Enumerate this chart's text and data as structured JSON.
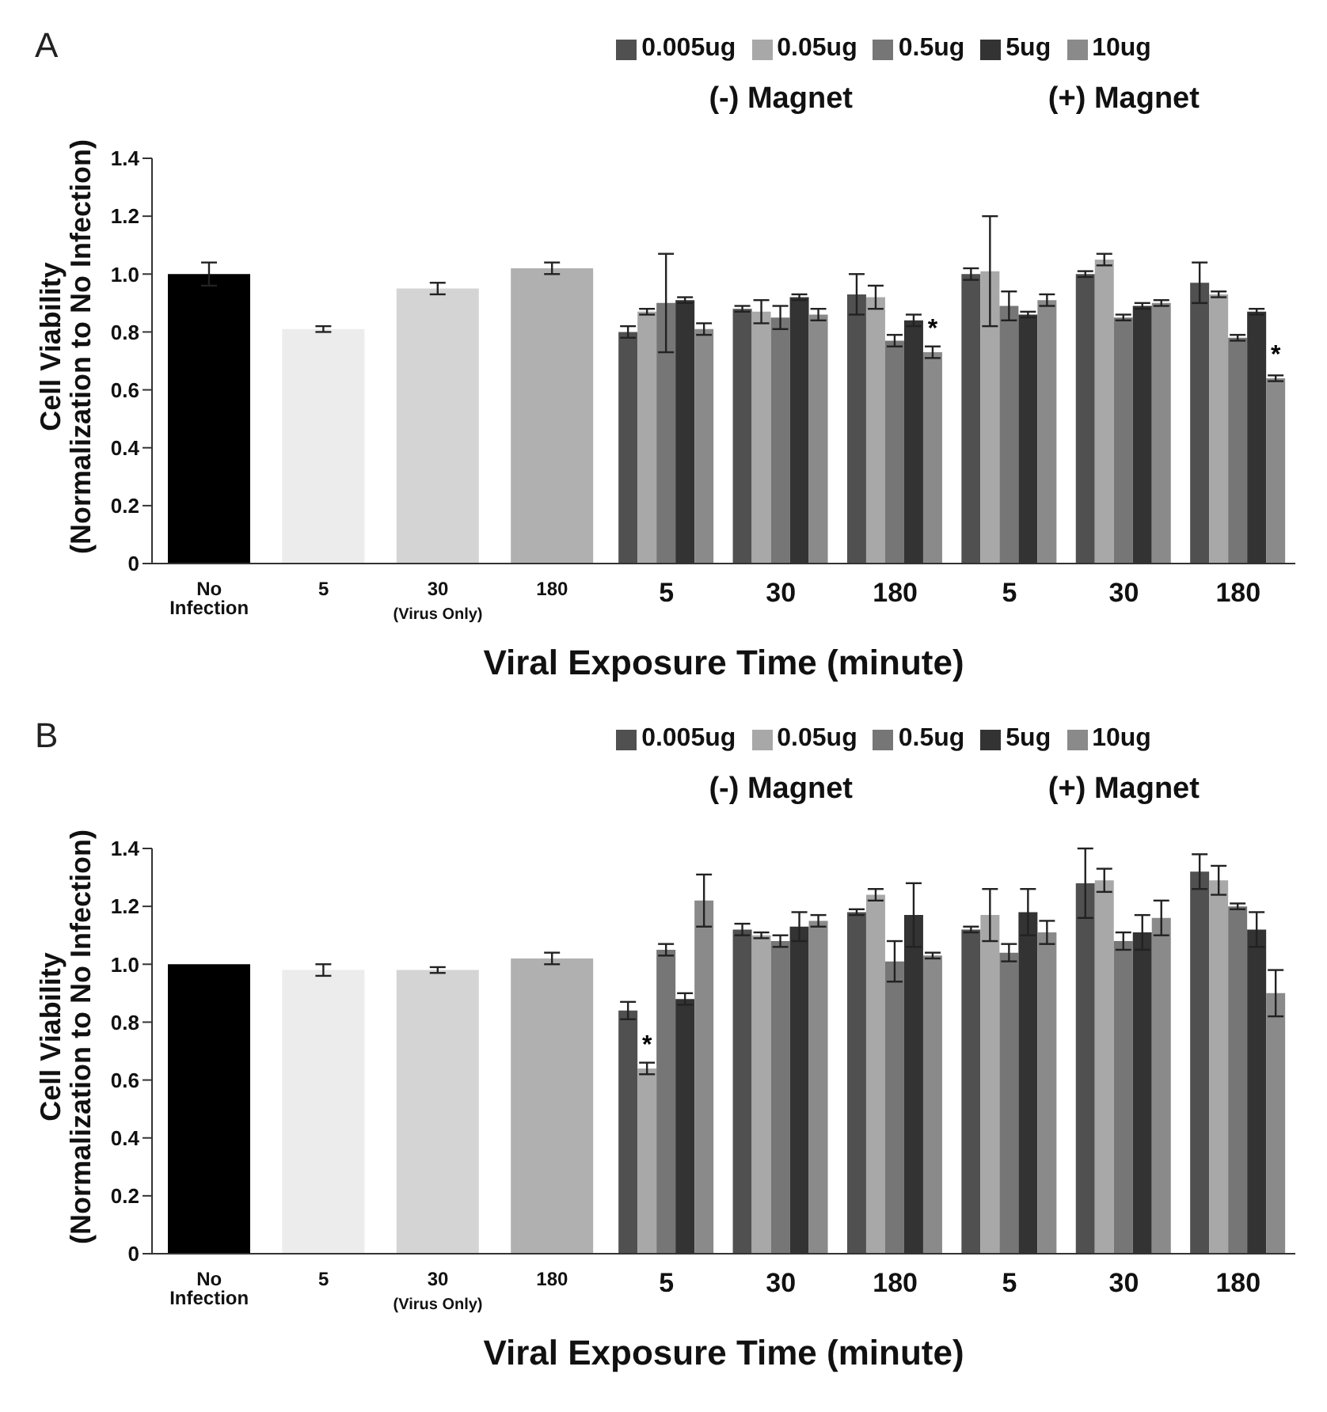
{
  "chart_data": [
    {
      "type": "bar",
      "title": "A",
      "xlabel": "Viral Exposure Time (minute)",
      "ylabel": "Cell Viability (Normalization to No Infection)",
      "annotations": [
        "(-) Magnet",
        "(+) Magnet",
        "(Virus Only)"
      ],
      "legend": "top",
      "categories": [
        "No Infection",
        "5",
        "30",
        "180",
        "5",
        "30",
        "180",
        "5",
        "30",
        "180"
      ],
      "ylim": [
        0,
        1.4
      ],
      "yticks": [
        0,
        0.2,
        0.4,
        0.6,
        0.8,
        {
          "value": 1,
          "label": "1.0"
        },
        1.2,
        1.4
      ],
      "series": [
        {
          "colors": [
            "#000000",
            "#ececec",
            "#d4d4d4",
            "#b0b0b0",
            null,
            null,
            null,
            null,
            null,
            null
          ],
          "values": [
            1.0,
            0.81,
            0.95,
            1.02,
            null,
            null,
            null,
            null,
            null,
            null
          ],
          "errors": [
            0.04,
            0.01,
            0.02,
            0.02,
            null,
            null,
            null,
            null,
            null,
            null
          ]
        },
        {
          "name": "0.005ug",
          "color": "#505050",
          "values": [
            null,
            null,
            null,
            null,
            0.8,
            0.88,
            0.93,
            1.0,
            1.0,
            0.97
          ],
          "errors": [
            null,
            null,
            null,
            null,
            0.02,
            0.01,
            0.07,
            0.02,
            0.01,
            0.07
          ]
        },
        {
          "name": "0.05ug",
          "color": "#a8a8a8",
          "values": [
            null,
            null,
            null,
            null,
            0.87,
            0.87,
            0.92,
            1.01,
            1.05,
            0.93
          ],
          "errors": [
            null,
            null,
            null,
            null,
            0.01,
            0.04,
            0.04,
            0.19,
            0.02,
            0.01
          ]
        },
        {
          "name": "0.5ug",
          "color": "#767676",
          "values": [
            null,
            null,
            null,
            null,
            0.9,
            0.85,
            0.77,
            0.89,
            0.85,
            0.78
          ],
          "errors": [
            null,
            null,
            null,
            null,
            0.17,
            0.04,
            0.02,
            0.05,
            0.01,
            0.01
          ]
        },
        {
          "name": "5ug",
          "color": "#333333",
          "values": [
            null,
            null,
            null,
            null,
            0.91,
            0.92,
            0.84,
            0.86,
            0.89,
            0.87
          ],
          "errors": [
            null,
            null,
            null,
            null,
            0.01,
            0.01,
            0.02,
            0.01,
            0.01,
            0.01
          ]
        },
        {
          "name": "10ug",
          "color": "#8a8a8a",
          "values": [
            null,
            null,
            null,
            null,
            0.81,
            0.86,
            0.73,
            0.91,
            0.9,
            0.64
          ],
          "errors": [
            null,
            null,
            null,
            null,
            0.02,
            0.02,
            0.02,
            0.02,
            0.01,
            0.01
          ],
          "value_labels": [
            null,
            null,
            null,
            null,
            null,
            null,
            "*",
            null,
            null,
            "*"
          ]
        }
      ]
    },
    {
      "type": "bar",
      "title": "B",
      "xlabel": "Viral Exposure Time (minute)",
      "ylabel": "Cell Viability (Normalization to No Infection)",
      "annotations": [
        "(-) Magnet",
        "(+) Magnet",
        "(Virus Only)"
      ],
      "legend": "top",
      "categories": [
        "No Infection",
        "5",
        "30",
        "180",
        "5",
        "30",
        "180",
        "5",
        "30",
        "180"
      ],
      "ylim": [
        0,
        1.4
      ],
      "yticks": [
        0,
        0.2,
        0.4,
        0.6,
        0.8,
        {
          "value": 1,
          "label": "1.0"
        },
        1.2,
        1.4
      ],
      "series": [
        {
          "colors": [
            "#000000",
            "#ececec",
            "#d4d4d4",
            "#b0b0b0",
            null,
            null,
            null,
            null,
            null,
            null
          ],
          "values": [
            1.0,
            0.98,
            0.98,
            1.02,
            null,
            null,
            null,
            null,
            null,
            null
          ],
          "errors": [
            null,
            0.02,
            0.01,
            0.02,
            null,
            null,
            null,
            null,
            null,
            null
          ]
        },
        {
          "name": "0.005ug",
          "color": "#505050",
          "values": [
            null,
            null,
            null,
            null,
            0.84,
            1.12,
            1.18,
            1.12,
            1.28,
            1.32
          ],
          "errors": [
            null,
            null,
            null,
            null,
            0.03,
            0.02,
            0.01,
            0.01,
            0.12,
            0.06
          ]
        },
        {
          "name": "0.05ug",
          "color": "#a8a8a8",
          "values": [
            null,
            null,
            null,
            null,
            0.64,
            1.1,
            1.24,
            1.17,
            1.29,
            1.29
          ],
          "errors": [
            null,
            null,
            null,
            null,
            0.02,
            0.01,
            0.02,
            0.09,
            0.04,
            0.05
          ],
          "value_labels": [
            null,
            null,
            null,
            null,
            "*",
            null,
            null,
            null,
            null,
            null
          ]
        },
        {
          "name": "0.5ug",
          "color": "#767676",
          "values": [
            null,
            null,
            null,
            null,
            1.05,
            1.08,
            1.01,
            1.04,
            1.08,
            1.2
          ],
          "errors": [
            null,
            null,
            null,
            null,
            0.02,
            0.02,
            0.07,
            0.03,
            0.03,
            0.01
          ]
        },
        {
          "name": "5ug",
          "color": "#333333",
          "values": [
            null,
            null,
            null,
            null,
            0.88,
            1.13,
            1.17,
            1.18,
            1.11,
            1.12
          ],
          "errors": [
            null,
            null,
            null,
            null,
            0.02,
            0.05,
            0.11,
            0.08,
            0.06,
            0.06
          ]
        },
        {
          "name": "10ug",
          "color": "#8a8a8a",
          "values": [
            null,
            null,
            null,
            null,
            1.22,
            1.15,
            1.03,
            1.11,
            1.16,
            0.9
          ],
          "errors": [
            null,
            null,
            null,
            null,
            0.09,
            0.02,
            0.01,
            0.04,
            0.06,
            0.08
          ]
        }
      ]
    }
  ]
}
